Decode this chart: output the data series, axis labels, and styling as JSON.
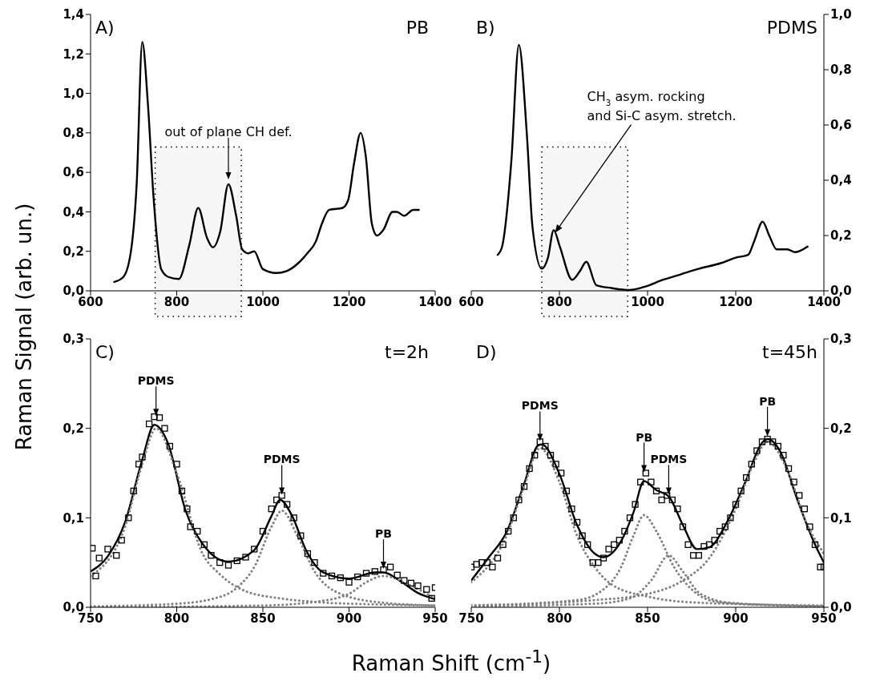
{
  "chart_data": [
    {
      "type": "line",
      "ylabel": "Raman Signal (arb. un.)",
      "annotations": [
        "A)",
        "PB",
        {
          "text": "out of plane CH def.",
          "x": 920,
          "y": 0.56
        }
      ],
      "series": [
        {
          "color": "#000000",
          "line_style": "solid",
          "x": [
            655,
            676,
            693,
            707,
            720,
            733,
            746,
            764,
            781,
            805,
            829,
            850,
            870,
            884,
            901,
            920,
            938,
            952,
            966,
            980,
            1000,
            1031,
            1055,
            1082,
            1103,
            1123,
            1137,
            1154,
            1185,
            1198,
            1212,
            1227,
            1239,
            1253,
            1265,
            1280,
            1301,
            1311,
            1328,
            1349,
            1362
          ],
          "values": [
            0.045,
            0.07,
            0.19,
            0.54,
            1.26,
            0.95,
            0.48,
            0.11,
            0.07,
            0.06,
            0.23,
            0.42,
            0.27,
            0.22,
            0.3,
            0.54,
            0.38,
            0.21,
            0.19,
            0.2,
            0.11,
            0.09,
            0.1,
            0.14,
            0.19,
            0.25,
            0.34,
            0.41,
            0.42,
            0.46,
            0.65,
            0.8,
            0.68,
            0.34,
            0.28,
            0.31,
            0.4,
            0.4,
            0.38,
            0.41,
            0.41
          ]
        }
      ],
      "bands": [
        {
          "axis": "x",
          "from": 750,
          "to": 950,
          "color": "#000000"
        }
      ],
      "xlim": [
        600,
        1400
      ],
      "xticks": [
        600,
        800,
        1000,
        1200,
        1400
      ],
      "ylim": [
        0,
        1.4
      ],
      "yticks": [
        {
          "value": 0,
          "label": "0,0"
        },
        {
          "value": 0.2,
          "label": "0,2"
        },
        {
          "value": 0.4,
          "label": "0,4"
        },
        {
          "value": 0.6,
          "label": "0,6"
        },
        {
          "value": 0.8,
          "label": "0,8"
        },
        {
          "value": 1.0,
          "label": "1,0"
        },
        {
          "value": 1.2,
          "label": "1,2"
        },
        {
          "value": 1.4,
          "label": "1,4"
        }
      ]
    },
    {
      "type": "line",
      "annotations": [
        "B)",
        "PDMS",
        {
          "text": "CH$_{3}$ asym. rocking\nand Si-C asym. stretch.",
          "x": 790,
          "y": 0.21
        }
      ],
      "series": [
        {
          "color": "#000000",
          "line_style": "solid",
          "x": [
            660,
            670,
            691,
            708,
            726,
            739,
            760,
            774,
            787,
            801,
            829,
            846,
            861,
            884,
            918,
            959,
            994,
            1035,
            1076,
            1117,
            1166,
            1200,
            1228,
            1242,
            1261,
            1276,
            1293,
            1317,
            1335,
            1363
          ],
          "values": [
            0.13,
            0.16,
            0.47,
            0.89,
            0.57,
            0.23,
            0.08,
            0.12,
            0.22,
            0.16,
            0.04,
            0.07,
            0.105,
            0.02,
            0.01,
            0.003,
            0.015,
            0.04,
            0.06,
            0.08,
            0.1,
            0.12,
            0.13,
            0.18,
            0.25,
            0.2,
            0.15,
            0.15,
            0.14,
            0.16
          ]
        }
      ],
      "bands": [
        {
          "axis": "x",
          "from": 760,
          "to": 955,
          "color": "#000000"
        }
      ],
      "xlim": [
        600,
        1400
      ],
      "xticks": [
        600,
        800,
        1000,
        1200,
        1400
      ],
      "ylim": [
        0,
        1.0
      ],
      "yticks": [
        {
          "value": 0,
          "label": "0,0"
        },
        {
          "value": 0.2,
          "label": "0,2"
        },
        {
          "value": 0.4,
          "label": "0,4"
        },
        {
          "value": 0.6,
          "label": "0,6"
        },
        {
          "value": 0.8,
          "label": "0,8"
        },
        {
          "value": 1.0,
          "label": "1,0"
        }
      ]
    },
    {
      "type": "line",
      "xlabel": "Raman Shift (cm$^{-1}$)",
      "annotations": [
        "C)",
        "t=2h",
        {
          "text": "PDMS",
          "x": 788,
          "y": 0.213
        },
        {
          "text": "PDMS",
          "x": 861,
          "y": 0.125
        },
        {
          "text": "PB",
          "x": 920,
          "y": 0.042
        }
      ],
      "series": [
        {
          "type": "scatter",
          "color": "#000000",
          "marker": "square",
          "x": [
            751,
            753,
            755,
            760,
            765,
            768,
            772,
            775,
            778,
            780,
            784,
            787,
            790,
            793,
            796,
            800,
            803,
            806,
            808,
            812,
            816,
            820,
            825,
            830,
            835,
            840,
            845,
            850,
            855,
            858,
            861,
            864,
            868,
            872,
            876,
            880,
            885,
            890,
            895,
            900,
            905,
            910,
            915,
            920,
            924,
            928,
            932,
            936,
            940,
            945,
            948,
            950
          ],
          "values": [
            0.066,
            0.035,
            0.055,
            0.065,
            0.058,
            0.075,
            0.1,
            0.13,
            0.16,
            0.168,
            0.205,
            0.213,
            0.212,
            0.2,
            0.18,
            0.16,
            0.13,
            0.11,
            0.09,
            0.085,
            0.07,
            0.058,
            0.05,
            0.047,
            0.052,
            0.056,
            0.065,
            0.085,
            0.11,
            0.12,
            0.125,
            0.115,
            0.1,
            0.08,
            0.06,
            0.05,
            0.038,
            0.035,
            0.033,
            0.028,
            0.034,
            0.038,
            0.04,
            0.042,
            0.045,
            0.036,
            0.03,
            0.027,
            0.024,
            0.02,
            0.01,
            0.022
          ]
        },
        {
          "type": "line",
          "color": "#000000",
          "line_style": "solid",
          "x": [
            750,
            760,
            770,
            780,
            787,
            795,
            805,
            815,
            830,
            845,
            855,
            860,
            867,
            875,
            885,
            900,
            915,
            920,
            930,
            940,
            950
          ],
          "values": [
            0.04,
            0.057,
            0.095,
            0.165,
            0.204,
            0.183,
            0.109,
            0.071,
            0.051,
            0.064,
            0.102,
            0.12,
            0.102,
            0.064,
            0.039,
            0.032,
            0.039,
            0.039,
            0.029,
            0.016,
            0.009
          ]
        },
        {
          "type": "line",
          "color": "#808080",
          "line_style": "dotted",
          "x": [
            750,
            770,
            780,
            788,
            800,
            815,
            825,
            840,
            860,
            880,
            920,
            950
          ],
          "values": [
            0.035,
            0.09,
            0.16,
            0.2,
            0.15,
            0.06,
            0.037,
            0.018,
            0.01,
            0.006,
            0.003,
            0.002
          ]
        },
        {
          "type": "line",
          "color": "#808080",
          "line_style": "dotted",
          "x": [
            750,
            800,
            820,
            835,
            845,
            855,
            861,
            870,
            880,
            895,
            920,
            950
          ],
          "values": [
            0.001,
            0.004,
            0.009,
            0.022,
            0.045,
            0.09,
            0.108,
            0.08,
            0.04,
            0.015,
            0.005,
            0.002
          ]
        },
        {
          "type": "line",
          "color": "#808080",
          "line_style": "dotted",
          "x": [
            750,
            850,
            880,
            900,
            910,
            920,
            935,
            950
          ],
          "values": [
            0,
            0.002,
            0.006,
            0.015,
            0.028,
            0.035,
            0.025,
            0.01
          ]
        }
      ],
      "xlim": [
        750,
        950
      ],
      "xticks": [
        750,
        800,
        850,
        900,
        950
      ],
      "ylim": [
        0,
        0.3
      ],
      "yticks": [
        {
          "value": 0,
          "label": "0,0"
        },
        {
          "value": 0.1,
          "label": "0,1"
        },
        {
          "value": 0.2,
          "label": "0,2"
        },
        {
          "value": 0.3,
          "label": "0,3"
        }
      ]
    },
    {
      "type": "line",
      "annotations": [
        "D)",
        "t=45h",
        {
          "text": "PDMS",
          "x": 789,
          "y": 0.185
        },
        {
          "text": "PB",
          "x": 848,
          "y": 0.15
        },
        {
          "text": "PDMS",
          "x": 862,
          "y": 0.125
        },
        {
          "text": "PB",
          "x": 918,
          "y": 0.19
        }
      ],
      "series": [
        {
          "type": "scatter",
          "color": "#000000",
          "marker": "square",
          "x": [
            750,
            753,
            756,
            759,
            762,
            765,
            768,
            771,
            774,
            777,
            780,
            783,
            786,
            789,
            792,
            795,
            798,
            801,
            804,
            807,
            810,
            813,
            816,
            819,
            822,
            825,
            828,
            831,
            834,
            837,
            840,
            843,
            846,
            849,
            852,
            855,
            858,
            861,
            864,
            867,
            870,
            873,
            876,
            879,
            882,
            885,
            888,
            891,
            894,
            897,
            900,
            903,
            906,
            909,
            912,
            915,
            918,
            921,
            924,
            927,
            930,
            933,
            936,
            939,
            942,
            945,
            948,
            950
          ],
          "values": [
            0.045,
            0.048,
            0.05,
            0.05,
            0.045,
            0.055,
            0.07,
            0.085,
            0.1,
            0.12,
            0.135,
            0.155,
            0.17,
            0.185,
            0.18,
            0.17,
            0.16,
            0.15,
            0.13,
            0.11,
            0.095,
            0.08,
            0.07,
            0.05,
            0.05,
            0.055,
            0.065,
            0.07,
            0.075,
            0.085,
            0.1,
            0.115,
            0.14,
            0.15,
            0.14,
            0.13,
            0.12,
            0.125,
            0.12,
            0.11,
            0.09,
            0.07,
            0.058,
            0.058,
            0.068,
            0.07,
            0.075,
            0.085,
            0.09,
            0.1,
            0.115,
            0.13,
            0.145,
            0.16,
            0.175,
            0.185,
            0.188,
            0.185,
            0.18,
            0.17,
            0.155,
            0.14,
            0.125,
            0.11,
            0.09,
            0.07,
            0.045,
            0.045
          ]
        },
        {
          "type": "line",
          "color": "#000000",
          "line_style": "solid",
          "x": [
            750,
            760,
            770,
            780,
            788,
            790,
            800,
            810,
            820,
            825,
            835,
            842,
            848,
            855,
            862,
            870,
            878,
            885,
            895,
            905,
            915,
            918,
            925,
            935,
            945,
            950
          ],
          "values": [
            0.03,
            0.056,
            0.084,
            0.138,
            0.181,
            0.182,
            0.149,
            0.092,
            0.06,
            0.056,
            0.074,
            0.106,
            0.141,
            0.131,
            0.124,
            0.092,
            0.065,
            0.067,
            0.095,
            0.138,
            0.184,
            0.188,
            0.175,
            0.12,
            0.07,
            0.05
          ]
        },
        {
          "type": "line",
          "color": "#808080",
          "line_style": "dotted",
          "x": [
            750,
            770,
            780,
            789,
            800,
            810,
            820,
            830,
            850,
            880,
            950
          ],
          "values": [
            0.028,
            0.08,
            0.135,
            0.178,
            0.14,
            0.08,
            0.045,
            0.025,
            0.012,
            0.005,
            0.002
          ]
        },
        {
          "type": "line",
          "color": "#808080",
          "line_style": "dotted",
          "x": [
            750,
            810,
            825,
            835,
            842,
            848,
            855,
            865,
            875,
            890,
            950
          ],
          "values": [
            0.002,
            0.008,
            0.02,
            0.045,
            0.08,
            0.103,
            0.085,
            0.045,
            0.02,
            0.006,
            0.001
          ]
        },
        {
          "type": "line",
          "color": "#808080",
          "line_style": "dotted",
          "x": [
            750,
            820,
            840,
            852,
            862,
            870,
            880,
            900,
            950
          ],
          "values": [
            0.001,
            0.004,
            0.01,
            0.03,
            0.058,
            0.04,
            0.015,
            0.004,
            0.001
          ]
        },
        {
          "type": "line",
          "color": "#808080",
          "line_style": "dotted",
          "x": [
            750,
            820,
            850,
            870,
            885,
            900,
            910,
            918,
            930,
            940,
            950
          ],
          "values": [
            0.002,
            0.008,
            0.015,
            0.03,
            0.055,
            0.11,
            0.16,
            0.185,
            0.15,
            0.095,
            0.06
          ]
        }
      ],
      "xlim": [
        750,
        950
      ],
      "xticks": [
        750,
        800,
        850,
        900,
        950
      ],
      "ylim": [
        0,
        0.3
      ],
      "yticks": [
        {
          "value": 0,
          "label": "0,0"
        },
        {
          "value": 0.1,
          "label": "0,1"
        },
        {
          "value": 0.2,
          "label": "0,2"
        },
        {
          "value": 0.3,
          "label": "0,3"
        }
      ]
    }
  ]
}
